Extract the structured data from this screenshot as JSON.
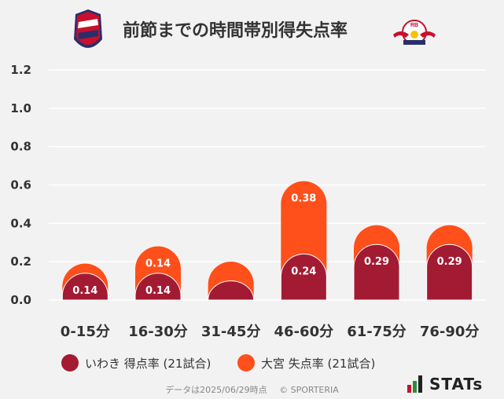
{
  "header": {
    "title": "前節までの時間帯別得失点率",
    "home_logo_text": "IWAKI FC",
    "away_logo_text": "RB"
  },
  "chart_data": {
    "type": "bar",
    "stacked": true,
    "categories": [
      "0-15分",
      "16-30分",
      "31-45分",
      "46-60分",
      "61-75分",
      "76-90分"
    ],
    "series": [
      {
        "name": "いわき 得点率 (21試合)",
        "color": "#a31a33",
        "values": [
          0.14,
          0.14,
          0.1,
          0.24,
          0.29,
          0.29
        ],
        "labels": [
          "0.14",
          "0.14",
          "",
          "0.24",
          "0.29",
          "0.29"
        ]
      },
      {
        "name": "大宮 失点率 (21試合)",
        "color": "#ff4f1a",
        "values": [
          0.05,
          0.14,
          0.1,
          0.38,
          0.1,
          0.1
        ],
        "labels": [
          "",
          "0.14",
          "",
          "0.38",
          "",
          ""
        ]
      }
    ],
    "yticks": [
      "0.0",
      "0.2",
      "0.4",
      "0.6",
      "0.8",
      "1.0",
      "1.2"
    ],
    "ylim": [
      0,
      1.2
    ],
    "grid": true,
    "legend_position": "bottom"
  },
  "footer": {
    "date_note": "データは2025/06/29時点",
    "copyright": "© SPORTERIA"
  },
  "brand": {
    "stats_label": "STATs"
  }
}
